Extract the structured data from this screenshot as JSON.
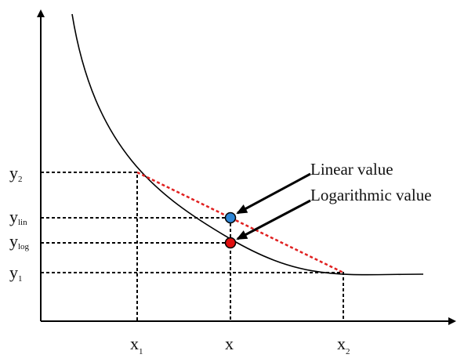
{
  "y_labels": [
    {
      "main": "y",
      "sub": "2"
    },
    {
      "main": "y",
      "sub": "lin"
    },
    {
      "main": "y",
      "sub": "log"
    },
    {
      "main": "y",
      "sub": "1"
    }
  ],
  "x_labels": [
    {
      "main": "x",
      "sub": "1"
    },
    {
      "main": "x"
    },
    {
      "main": "x",
      "sub": "2"
    }
  ],
  "annotations": [
    "Linear value",
    "Logarithmic value"
  ]
}
